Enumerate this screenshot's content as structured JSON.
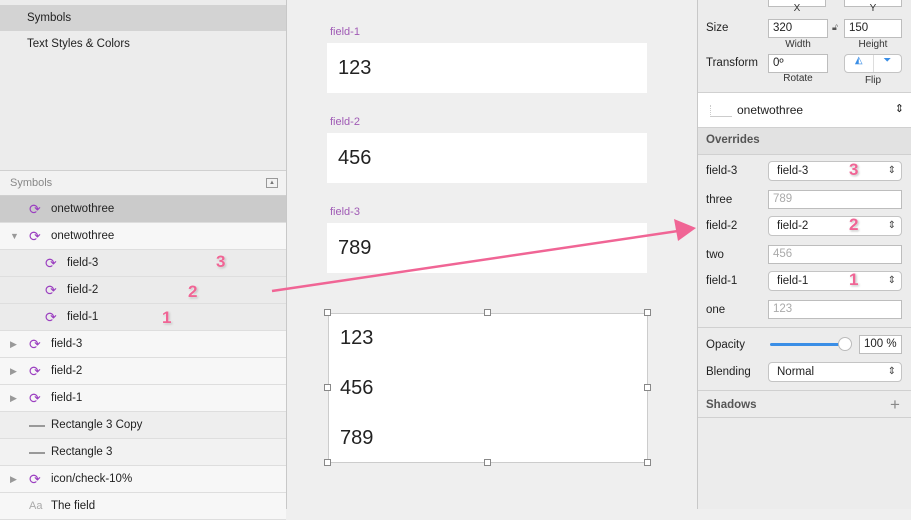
{
  "pages": {
    "items": [
      {
        "label": "Symbols",
        "selected": true
      },
      {
        "label": "Text Styles & Colors"
      }
    ]
  },
  "layers": {
    "header": "Symbols",
    "items": [
      {
        "label": "onetwothree",
        "icon": "symbol-icon",
        "selected": true
      },
      {
        "label": "onetwothree",
        "icon": "symbol-icon",
        "expanded": true
      },
      {
        "label": "field-3",
        "icon": "symbol-icon",
        "child": true
      },
      {
        "label": "field-2",
        "icon": "symbol-icon",
        "child": true
      },
      {
        "label": "field-1",
        "icon": "symbol-icon",
        "child": true
      },
      {
        "label": "field-3",
        "icon": "symbol-icon"
      },
      {
        "label": "field-2",
        "icon": "symbol-icon"
      },
      {
        "label": "field-1",
        "icon": "symbol-icon"
      },
      {
        "label": "Rectangle 3 Copy",
        "icon": "line-icon"
      },
      {
        "label": "Rectangle 3",
        "icon": "line-icon"
      },
      {
        "label": "icon/check-10%",
        "icon": "symbol-icon"
      },
      {
        "label": "The field",
        "icon": "text-icon",
        "icon_text": "Aa"
      }
    ]
  },
  "annotations": {
    "n1": "1",
    "n2": "2",
    "n3": "3",
    "arrow_color": "#f06595"
  },
  "canvas": {
    "fields": [
      {
        "label": "field-1",
        "value": "123"
      },
      {
        "label": "field-2",
        "value": "456"
      },
      {
        "label": "field-3",
        "value": "789"
      }
    ],
    "instance": [
      "123",
      "456",
      "789"
    ]
  },
  "inspector": {
    "x_label": "X",
    "y_label": "Y",
    "size_label": "Size",
    "width": "320",
    "height": "150",
    "width_label": "Width",
    "height_label": "Height",
    "transform_label": "Transform",
    "rotate": "0º",
    "rotate_label": "Rotate",
    "flip_label": "Flip",
    "symbol": "onetwothree",
    "overrides_label": "Overrides",
    "overrides": [
      {
        "label": "field-3",
        "value": "field-3"
      },
      {
        "label": "three",
        "placeholder": "789"
      },
      {
        "label": "field-2",
        "value": "field-2"
      },
      {
        "label": "two",
        "placeholder": "456"
      },
      {
        "label": "field-1",
        "value": "field-1"
      },
      {
        "label": "one",
        "placeholder": "123"
      }
    ],
    "opacity_label": "Opacity",
    "opacity": "100 %",
    "opacity_fraction": 1.0,
    "blending_label": "Blending",
    "blending": "Normal",
    "shadows_label": "Shadows",
    "add_icon": "plus"
  }
}
